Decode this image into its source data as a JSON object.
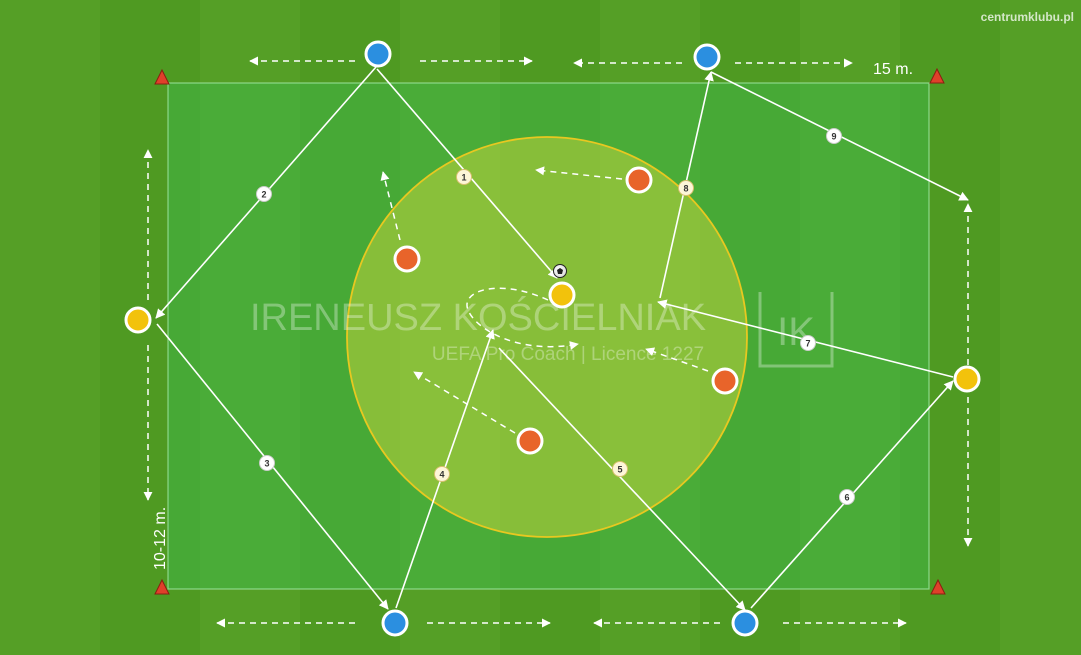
{
  "site_label": "centrumklubu.pl",
  "dimension_width": "15 m.",
  "dimension_height": "10-12 m.",
  "watermark": {
    "name": "IRENEUSZ KOŚCIELNIAK",
    "subtitle": "UEFA Pro Coach | Licence 1227",
    "logo_letters": "IK"
  },
  "colors": {
    "blue_player": "#2b8fe0",
    "yellow_player": "#f2c20c",
    "orange_player": "#e8642a",
    "cone": "#e0402a",
    "pass_badge_border": "#e6d28a"
  },
  "pass_numbers": [
    "1",
    "2",
    "3",
    "4",
    "5",
    "6",
    "7",
    "8",
    "9"
  ],
  "icons": [
    "cone-icon",
    "ball-icon"
  ]
}
